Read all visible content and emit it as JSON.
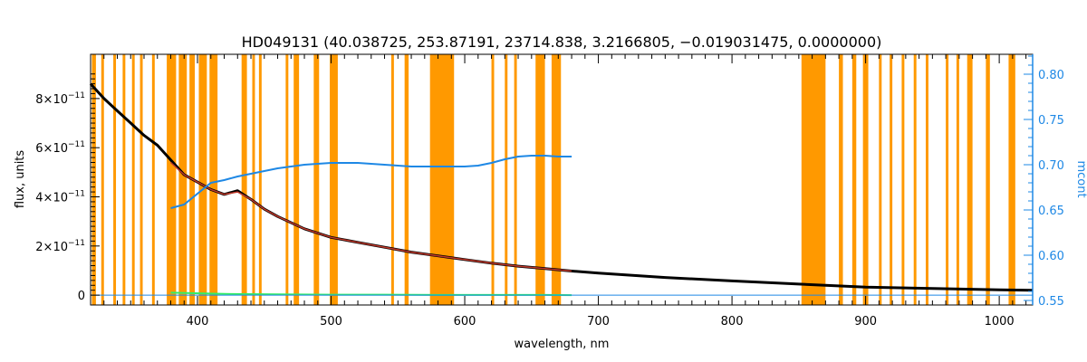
{
  "colors": {
    "mask": "#ff9900",
    "observed": "#000000",
    "model": "#c0392b",
    "continuum": "#1e88e5",
    "residual": "#33ee66",
    "right_axis": "#1e88e5"
  },
  "chart_data": {
    "type": "line",
    "title": "HD049131    (40.038725, 253.87191, 23714.838, 3.2166805, −0.019031475, 0.0000000)",
    "xlabel": "wavelength, nm",
    "ylabel": "flux, units",
    "y2label": "mcont",
    "xlim": [
      320,
      1025
    ],
    "ylim": [
      -4e-12,
      9.8e-11
    ],
    "y2lim": [
      0.545,
      0.822
    ],
    "grid": false,
    "legend": "none",
    "x_ticks": [
      400,
      500,
      600,
      700,
      800,
      900,
      1000
    ],
    "y_ticks": [
      {
        "value": 0,
        "mantissa": "0",
        "exponent": ""
      },
      {
        "value": 2e-11,
        "mantissa": "2×10",
        "exponent": "−11"
      },
      {
        "value": 4e-11,
        "mantissa": "4×10",
        "exponent": "−11"
      },
      {
        "value": 6e-11,
        "mantissa": "6×10",
        "exponent": "−11"
      },
      {
        "value": 8e-11,
        "mantissa": "8×10",
        "exponent": "−11"
      }
    ],
    "y2_ticks": [
      "0.55",
      "0.60",
      "0.65",
      "0.70",
      "0.75",
      "0.80"
    ],
    "mask_bands": [
      [
        321,
        324
      ],
      [
        328,
        330
      ],
      [
        337,
        339
      ],
      [
        344,
        346
      ],
      [
        351,
        353
      ],
      [
        357,
        359
      ],
      [
        366,
        368
      ],
      [
        377,
        384
      ],
      [
        386,
        392
      ],
      [
        394,
        398
      ],
      [
        401,
        407
      ],
      [
        409,
        415
      ],
      [
        433,
        437
      ],
      [
        441,
        443
      ],
      [
        446,
        448
      ],
      [
        466,
        468
      ],
      [
        472,
        476
      ],
      [
        487,
        491
      ],
      [
        499,
        505
      ],
      [
        545,
        547
      ],
      [
        555,
        558
      ],
      [
        574,
        592
      ],
      [
        620,
        622
      ],
      [
        630,
        632
      ],
      [
        637,
        639
      ],
      [
        653,
        660
      ],
      [
        665,
        672
      ],
      [
        852,
        870
      ],
      [
        880,
        883
      ],
      [
        890,
        893
      ],
      [
        898,
        902
      ],
      [
        910,
        912
      ],
      [
        918,
        920
      ],
      [
        927,
        929
      ],
      [
        936,
        938
      ],
      [
        945,
        947
      ],
      [
        960,
        962
      ],
      [
        968,
        970
      ],
      [
        976,
        980
      ],
      [
        990,
        993
      ],
      [
        1007,
        1012
      ]
    ],
    "series": [
      {
        "name": "observed",
        "x": [
          320,
          330,
          340,
          350,
          360,
          370,
          380,
          390,
          400,
          410,
          420,
          430,
          440,
          450,
          460,
          480,
          500,
          520,
          540,
          560,
          580,
          600,
          620,
          640,
          660,
          680,
          700,
          750,
          800,
          850,
          900,
          950,
          1000,
          1025
        ],
        "y": [
          8.6e-11,
          8e-11,
          7.5e-11,
          7e-11,
          6.5e-11,
          6.1e-11,
          5.5e-11,
          4.9e-11,
          4.6e-11,
          4.3e-11,
          4.1e-11,
          4.25e-11,
          3.9e-11,
          3.5e-11,
          3.2e-11,
          2.7e-11,
          2.35e-11,
          2.15e-11,
          1.95e-11,
          1.75e-11,
          1.6e-11,
          1.45e-11,
          1.3e-11,
          1.18e-11,
          1.08e-11,
          9.8e-12,
          9e-12,
          7.2e-12,
          5.8e-12,
          4.5e-12,
          3.3e-12,
          2.7e-12,
          2.2e-12,
          2e-12
        ]
      },
      {
        "name": "model",
        "x": [
          380,
          390,
          400,
          410,
          420,
          430,
          440,
          450,
          460,
          480,
          500,
          520,
          540,
          560,
          580,
          600,
          620,
          640,
          660,
          680
        ],
        "y": [
          5.4e-11,
          4.9e-11,
          4.6e-11,
          4.3e-11,
          4.1e-11,
          4.2e-11,
          3.9e-11,
          3.5e-11,
          3.2e-11,
          2.7e-11,
          2.35e-11,
          2.15e-11,
          1.95e-11,
          1.75e-11,
          1.6e-11,
          1.45e-11,
          1.3e-11,
          1.18e-11,
          1.08e-11,
          9.8e-12
        ]
      },
      {
        "name": "residual",
        "x": [
          380,
          420,
          460,
          500,
          540,
          580,
          620,
          660,
          680
        ],
        "y": [
          1e-12,
          5e-13,
          3e-13,
          2e-13,
          2e-13,
          1e-13,
          1e-13,
          1e-13,
          0.0
        ]
      },
      {
        "name": "mcont",
        "axis": "right",
        "x": [
          380,
          390,
          400,
          410,
          420,
          430,
          440,
          460,
          480,
          500,
          520,
          540,
          560,
          580,
          600,
          610,
          620,
          630,
          640,
          650,
          660,
          670,
          680
        ],
        "y": [
          0.652,
          0.656,
          0.668,
          0.68,
          0.683,
          0.687,
          0.69,
          0.696,
          0.7,
          0.702,
          0.702,
          0.7,
          0.698,
          0.698,
          0.698,
          0.699,
          0.702,
          0.706,
          0.709,
          0.71,
          0.71,
          0.709,
          0.709
        ]
      }
    ]
  }
}
